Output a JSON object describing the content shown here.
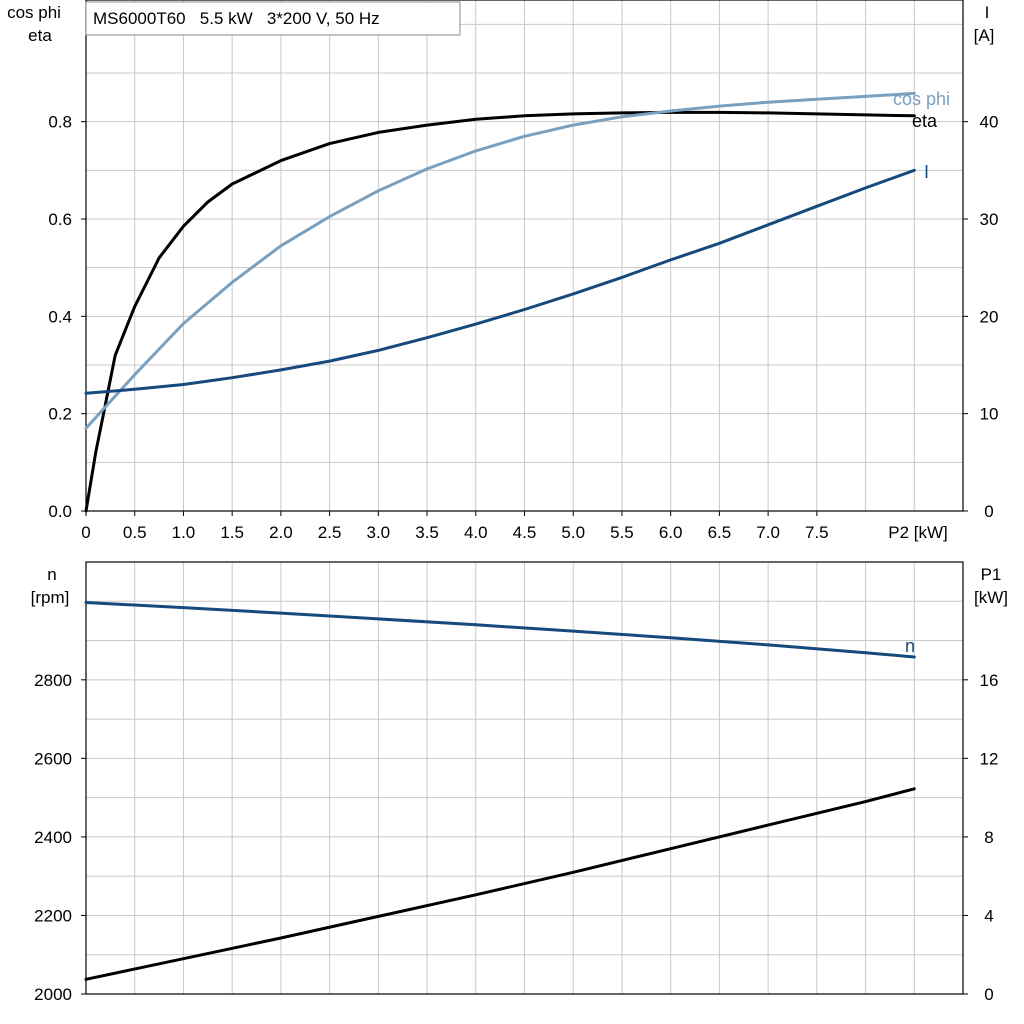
{
  "chart_data": [
    {
      "type": "line",
      "title": "MS6000T60   5.5 kW   3*200 V, 50 Hz",
      "xlabel": "P2 [kW]",
      "x_ticks": [
        "0",
        "0.5",
        "1.0",
        "1.5",
        "2.0",
        "2.5",
        "3.0",
        "3.5",
        "4.0",
        "4.5",
        "5.0",
        "5.5",
        "6.0",
        "6.5",
        "7.0",
        "7.5"
      ],
      "xlim": [
        0,
        9
      ],
      "ylabel_left": [
        "cos phi",
        "eta"
      ],
      "ylim_left": [
        0,
        1.05
      ],
      "y_ticks_left": [
        "0.0",
        "0.2",
        "0.4",
        "0.6",
        "0.8"
      ],
      "ylabel_right": [
        "I",
        "[A]"
      ],
      "ylim_right": [
        0,
        52.5
      ],
      "y_ticks_right": [
        "0",
        "10",
        "20",
        "30",
        "40"
      ],
      "grid": true,
      "series": [
        {
          "name": "eta",
          "axis": "left",
          "color": "#000000",
          "x": [
            0,
            0.1,
            0.2,
            0.3,
            0.5,
            0.75,
            1.0,
            1.25,
            1.5,
            2.0,
            2.5,
            3.0,
            3.5,
            4.0,
            4.5,
            5.0,
            5.5,
            6.0,
            6.5,
            7.0,
            7.5,
            8.0,
            8.5
          ],
          "y": [
            0.0,
            0.12,
            0.22,
            0.32,
            0.42,
            0.52,
            0.585,
            0.635,
            0.672,
            0.72,
            0.755,
            0.778,
            0.793,
            0.805,
            0.812,
            0.816,
            0.818,
            0.819,
            0.819,
            0.818,
            0.816,
            0.814,
            0.812
          ]
        },
        {
          "name": "cos phi",
          "axis": "left",
          "color": "#7aa0c0",
          "x": [
            0,
            0.5,
            1.0,
            1.5,
            2.0,
            2.5,
            3.0,
            3.5,
            4.0,
            4.5,
            5.0,
            5.5,
            6.0,
            6.5,
            7.0,
            7.5,
            8.0,
            8.5
          ],
          "y": [
            0.17,
            0.28,
            0.385,
            0.47,
            0.545,
            0.605,
            0.658,
            0.703,
            0.74,
            0.77,
            0.793,
            0.81,
            0.822,
            0.832,
            0.84,
            0.846,
            0.852,
            0.858
          ]
        },
        {
          "name": "I",
          "axis": "right",
          "color": "#174a7c",
          "x": [
            0,
            0.5,
            1.0,
            1.5,
            2.0,
            2.5,
            3.0,
            3.5,
            4.0,
            4.5,
            5.0,
            5.5,
            6.0,
            6.5,
            7.0,
            7.5,
            8.0,
            8.5
          ],
          "y": [
            12.1,
            12.5,
            13.0,
            13.7,
            14.5,
            15.4,
            16.5,
            17.8,
            19.2,
            20.7,
            22.3,
            24.0,
            25.8,
            27.5,
            29.4,
            31.3,
            33.2,
            35.0
          ]
        }
      ]
    },
    {
      "type": "line",
      "xlim": [
        0,
        9
      ],
      "ylabel_left": [
        "n",
        "[rpm]"
      ],
      "ylim_left": [
        2000,
        3100
      ],
      "y_ticks_left": [
        "2000",
        "2200",
        "2400",
        "2600",
        "2800"
      ],
      "ylabel_right": [
        "P1",
        "[kW]"
      ],
      "ylim_right": [
        0,
        22
      ],
      "y_ticks_right": [
        "0",
        "4",
        "8",
        "12",
        "16"
      ],
      "grid": true,
      "series": [
        {
          "name": "n",
          "axis": "left",
          "color": "#174a7c",
          "x": [
            0,
            1.0,
            2.0,
            3.0,
            4.0,
            5.0,
            6.0,
            7.0,
            8.0,
            8.5
          ],
          "y": [
            2997,
            2984,
            2970,
            2955,
            2940,
            2924,
            2907,
            2889,
            2869,
            2858
          ]
        },
        {
          "axis": "right",
          "color": "#000000",
          "x": [
            0,
            1.0,
            2.0,
            3.0,
            4.0,
            5.0,
            6.0,
            7.0,
            8.0,
            8.5
          ],
          "y": [
            0.75,
            1.8,
            2.85,
            3.95,
            5.05,
            6.2,
            7.4,
            8.6,
            9.8,
            10.45
          ]
        }
      ]
    }
  ]
}
